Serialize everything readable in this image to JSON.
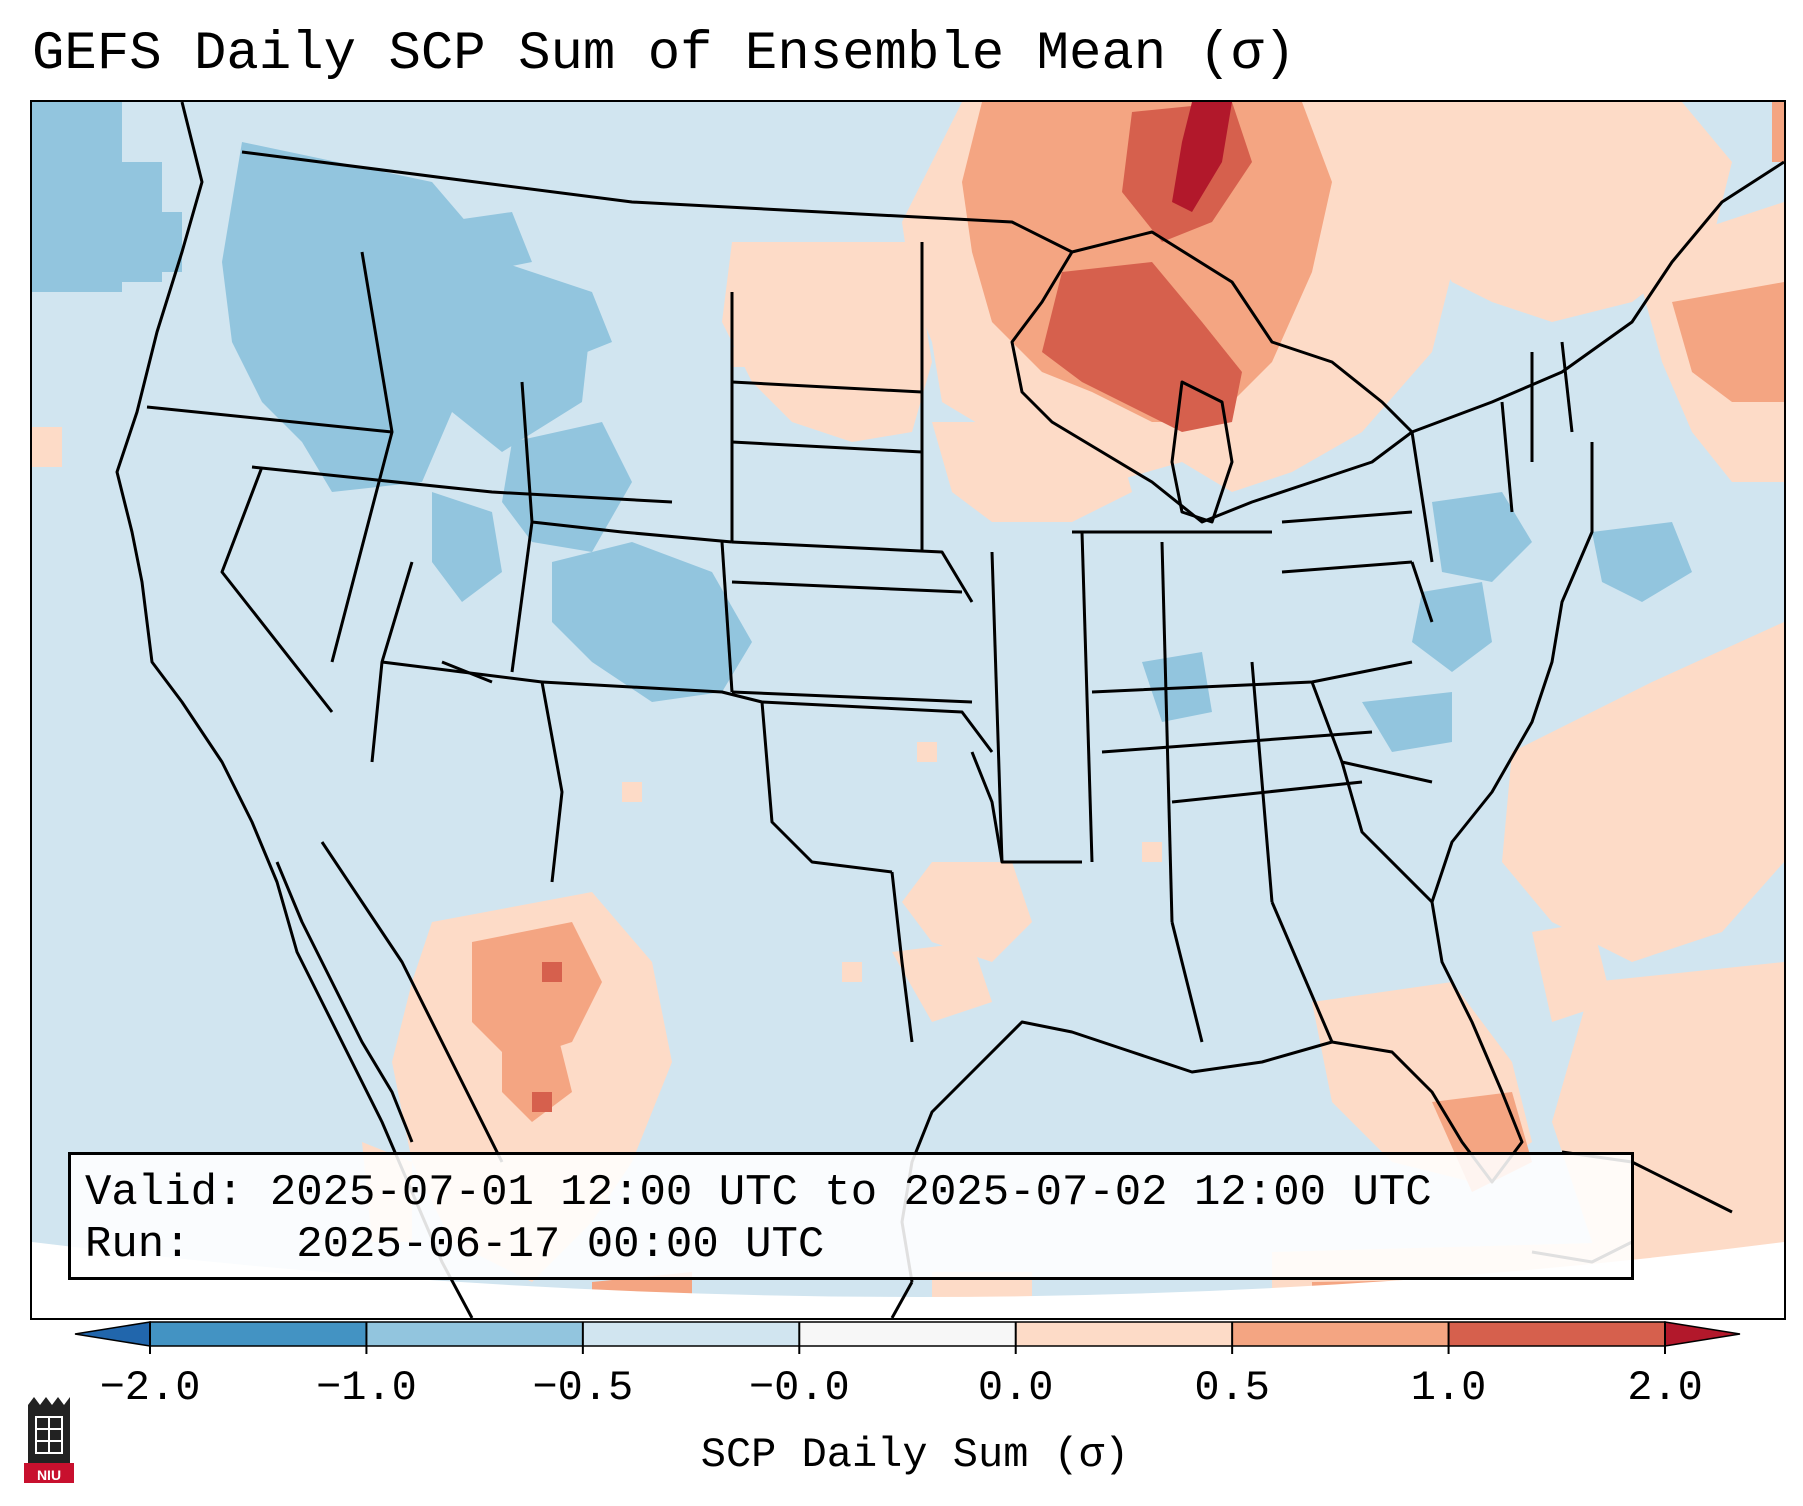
{
  "title": "GEFS Daily SCP Sum of Ensemble Mean (σ)",
  "info": {
    "valid_label": "Valid:",
    "valid_value": "2025-07-01 12:00 UTC to 2025-07-02 12:00 UTC",
    "run_label": "Run:",
    "run_value": "2025-06-17 00:00 UTC"
  },
  "colorbar": {
    "label": "SCP Daily Sum (σ)",
    "ticks": [
      "−2.0",
      "−1.0",
      "−0.5",
      "−0.0",
      "0.0",
      "0.5",
      "1.0",
      "2.0"
    ],
    "bins": [
      {
        "range": "< -2.0",
        "color": "#2166ac"
      },
      {
        "range": "-2.0 to -1.0",
        "color": "#4393c3"
      },
      {
        "range": "-1.0 to -0.5",
        "color": "#92c5de"
      },
      {
        "range": "-0.5 to -0.0",
        "color": "#d1e5f0"
      },
      {
        "range": "-0.0 to 0.0",
        "color": "#f7f7f7"
      },
      {
        "range": "0.0 to 0.5",
        "color": "#fddbc7"
      },
      {
        "range": "0.5 to 1.0",
        "color": "#f4a582"
      },
      {
        "range": "1.0 to 2.0",
        "color": "#d6604d"
      },
      {
        "range": "> 2.0",
        "color": "#b2182b"
      }
    ]
  },
  "logo": {
    "text": "NIU",
    "color": "#c8102e"
  },
  "regions": [
    {
      "name": "upper-midwest-great-lakes",
      "level": "0.5 to 2.0",
      "color": "#f4a582"
    },
    {
      "name": "northeast-coast",
      "level": "0.5 to 1.0",
      "color": "#f4a582"
    },
    {
      "name": "northwest-mexico",
      "level": "0.0 to 1.0",
      "color": "#fddbc7"
    },
    {
      "name": "northern-rockies",
      "level": "-1.0 to -0.5",
      "color": "#92c5de"
    },
    {
      "name": "western-atlantic",
      "level": "0.0 to 0.5",
      "color": "#fddbc7"
    }
  ]
}
